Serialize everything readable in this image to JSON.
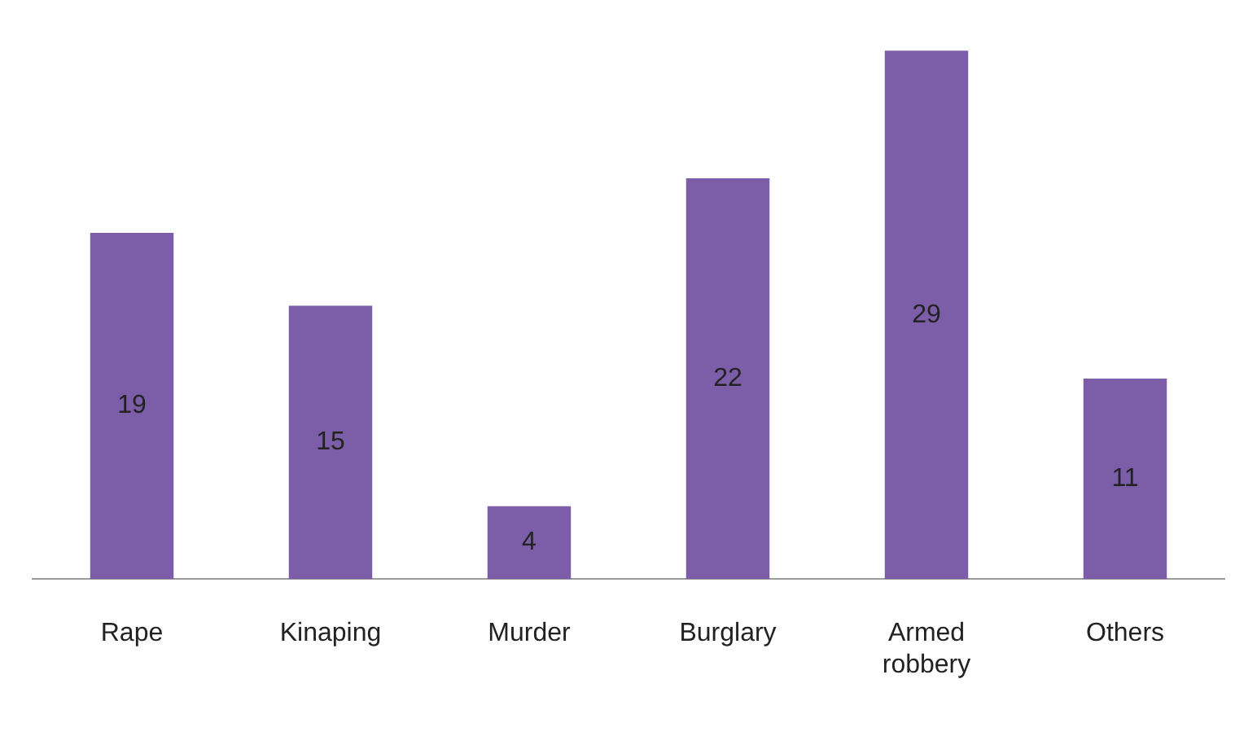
{
  "chart_data": {
    "type": "bar",
    "categories": [
      "Rape",
      "Kinaping",
      "Murder",
      "Burglary",
      "Armed robbery",
      "Others"
    ],
    "values": [
      19,
      15,
      4,
      22,
      29,
      11
    ],
    "color": "#7b5ea7",
    "data_labels": true,
    "grid": false,
    "legend": false
  }
}
